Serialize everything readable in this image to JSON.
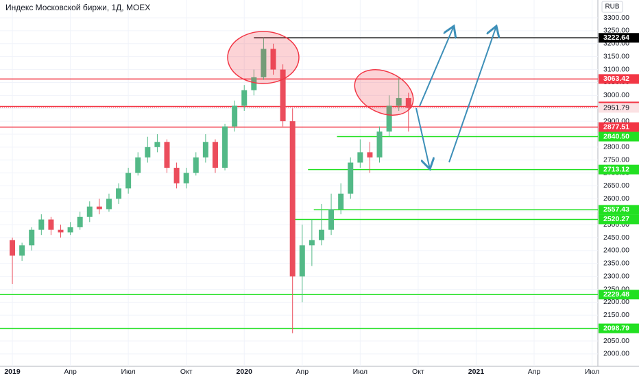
{
  "chart_data": {
    "type": "candlestick",
    "title": "Индекс Московской биржи, 1Д, MOEX",
    "currency": "RUB",
    "up_color": "#53b987",
    "down_color": "#eb4d5c",
    "x": [
      0,
      0.5,
      1,
      1.5,
      2,
      2.5,
      3,
      3.5,
      4,
      4.5,
      5,
      5.5,
      6,
      6.5,
      7,
      7.5,
      8,
      8.5,
      9,
      9.5,
      10,
      10.5,
      11,
      11.5,
      12,
      12.5,
      13,
      13.5,
      14,
      14.5,
      15,
      15.5,
      16,
      16.5,
      17,
      17.5,
      18,
      18.5,
      19,
      19.5,
      20,
      20.5
    ],
    "open": [
      2440,
      2380,
      2420,
      2480,
      2520,
      2480,
      2470,
      2490,
      2530,
      2570,
      2560,
      2600,
      2640,
      2700,
      2760,
      2800,
      2820,
      2720,
      2660,
      2700,
      2760,
      2820,
      2720,
      2880,
      2960,
      3020,
      3070,
      3180,
      3100,
      2900,
      2300,
      2420,
      2440,
      2480,
      2560,
      2620,
      2740,
      2780,
      2760,
      2860,
      2960,
      2990
    ],
    "high": [
      2450,
      2430,
      2490,
      2540,
      2530,
      2500,
      2510,
      2550,
      2590,
      2600,
      2620,
      2660,
      2720,
      2780,
      2840,
      2850,
      2830,
      2740,
      2720,
      2780,
      2850,
      2830,
      2890,
      2980,
      3040,
      3100,
      3222.64,
      3200,
      3120,
      2950,
      2500,
      2520,
      2580,
      2620,
      2660,
      2760,
      2830,
      2820,
      2880,
      3000,
      3070,
      3010
    ],
    "low": [
      2270,
      2360,
      2400,
      2460,
      2460,
      2450,
      2460,
      2480,
      2510,
      2540,
      2550,
      2580,
      2620,
      2690,
      2740,
      2780,
      2700,
      2640,
      2640,
      2690,
      2740,
      2700,
      2710,
      2860,
      2940,
      3000,
      3060,
      3080,
      2880,
      2080,
      2200,
      2340,
      2420,
      2460,
      2540,
      2600,
      2720,
      2700,
      2740,
      2840,
      2940,
      2860
    ],
    "close": [
      2380,
      2420,
      2480,
      2520,
      2480,
      2470,
      2490,
      2530,
      2570,
      2560,
      2600,
      2640,
      2700,
      2760,
      2800,
      2820,
      2720,
      2660,
      2700,
      2760,
      2820,
      2720,
      2880,
      2960,
      3020,
      3070,
      3180,
      3100,
      2900,
      2300,
      2420,
      2440,
      2480,
      2560,
      2620,
      2740,
      2780,
      2760,
      2860,
      2960,
      2990,
      2952
    ],
    "xlim": [
      -0.64,
      30.3
    ],
    "xticks": [
      {
        "value": 0,
        "label": "2019"
      },
      {
        "value": 3,
        "label": "Апр"
      },
      {
        "value": 6,
        "label": "Июл"
      },
      {
        "value": 9,
        "label": "Окт"
      },
      {
        "value": 12,
        "label": "2020"
      },
      {
        "value": 15,
        "label": "Апр"
      },
      {
        "value": 18,
        "label": "Июл"
      },
      {
        "value": 21,
        "label": "Окт"
      },
      {
        "value": 24,
        "label": "2021"
      },
      {
        "value": 27,
        "label": "Апр"
      },
      {
        "value": 30,
        "label": "Июл"
      }
    ],
    "ylim": [
      1952,
      3369
    ],
    "yticks": [
      {
        "value": 2000,
        "label": "2000.00"
      },
      {
        "value": 2050,
        "label": "2050.00"
      },
      {
        "value": 2100,
        "label": "2100.00"
      },
      {
        "value": 2150,
        "label": "2150.00"
      },
      {
        "value": 2200,
        "label": "2200.00"
      },
      {
        "value": 2250,
        "label": "2250.00"
      },
      {
        "value": 2300,
        "label": "2300.00"
      },
      {
        "value": 2350,
        "label": "2350.00"
      },
      {
        "value": 2400,
        "label": "2400.00"
      },
      {
        "value": 2450,
        "label": "2450.00"
      },
      {
        "value": 2500,
        "label": "2500.00"
      },
      {
        "value": 2550,
        "label": "2550.00"
      },
      {
        "value": 2600,
        "label": "2600.00"
      },
      {
        "value": 2650,
        "label": "2650.00"
      },
      {
        "value": 2700,
        "label": "2700.00"
      },
      {
        "value": 2750,
        "label": "2750.00"
      },
      {
        "value": 2800,
        "label": "2800.00"
      },
      {
        "value": 2850,
        "label": "2850.00"
      },
      {
        "value": 2900,
        "label": "2900.00"
      },
      {
        "value": 2950,
        "label": "2950.00"
      },
      {
        "value": 3000,
        "label": "3000.00"
      },
      {
        "value": 3050,
        "label": "3050.00"
      },
      {
        "value": 3100,
        "label": "3100.00"
      },
      {
        "value": 3150,
        "label": "3150.00"
      },
      {
        "value": 3200,
        "label": "3200.00"
      },
      {
        "value": 3250,
        "label": "3250.00"
      },
      {
        "value": 3300,
        "label": "3300.00"
      }
    ],
    "levels": [
      {
        "value": 3222.64,
        "color": "#000000",
        "x_start": 12.5
      },
      {
        "value": 3063.42,
        "color": "#f23645",
        "x_start": -0.64
      },
      {
        "value": 2957.26,
        "color": "#f23645",
        "x_start": -0.64
      },
      {
        "value": 2877.51,
        "color": "#f23645",
        "x_start": -0.64
      },
      {
        "value": 2840.5,
        "label": "2840.50",
        "color": "#22e022",
        "x_start": 16.8
      },
      {
        "value": 2713.12,
        "color": "#22e022",
        "x_start": 15.3
      },
      {
        "value": 2557.43,
        "color": "#22e022",
        "x_start": 15.6
      },
      {
        "value": 2520.27,
        "color": "#22e022",
        "x_start": 14.6
      },
      {
        "value": 2229.48,
        "color": "#22e022",
        "x_start": -0.64
      },
      {
        "value": 2098.79,
        "color": "#22e022",
        "x_start": -0.64
      }
    ],
    "current_price": 2951.79
  }
}
